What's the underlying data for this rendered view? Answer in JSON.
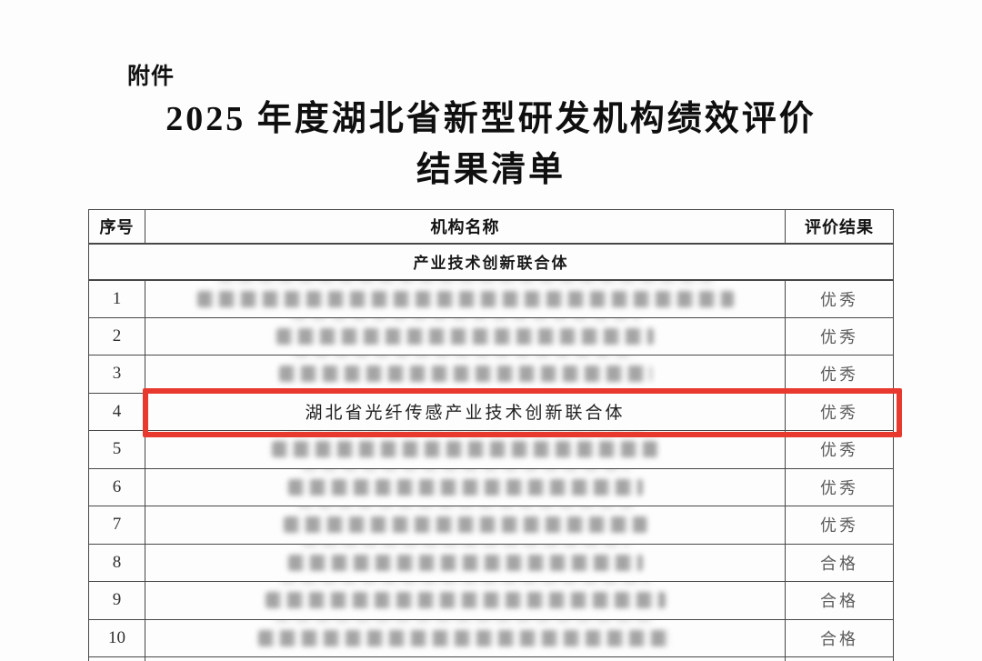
{
  "page": {
    "attachment_label": "附件",
    "title_line1": "2025 年度湖北省新型研发机构绩效评价",
    "title_line2": "结果清单"
  },
  "table": {
    "headers": {
      "index": "序号",
      "name": "机构名称",
      "result": "评价结果"
    },
    "section_header": "产业技术创新联合体",
    "highlight_color": "#e8392e",
    "rows": [
      {
        "num": "1",
        "redacted": true,
        "blur_style": "width:590px",
        "result": "优秀"
      },
      {
        "num": "2",
        "redacted": true,
        "blur_style": "width:415px",
        "result": "优秀"
      },
      {
        "num": "3",
        "redacted": true,
        "blur_style": "width:410px",
        "result": "优秀"
      },
      {
        "num": "4",
        "name": "湖北省光纤传感产业技术创新联合体",
        "result": "优秀",
        "highlighted": true
      },
      {
        "num": "5",
        "redacted": true,
        "blur_style": "width:425px",
        "result": "优秀"
      },
      {
        "num": "6",
        "redacted": true,
        "blur_style": "width:390px",
        "result": "优秀"
      },
      {
        "num": "7",
        "redacted": true,
        "blur_style": "width:400px",
        "result": "优秀"
      },
      {
        "num": "8",
        "redacted": true,
        "blur_style": "width:390px",
        "result": "合格"
      },
      {
        "num": "9",
        "redacted": true,
        "blur_style": "width:440px",
        "result": "合格"
      },
      {
        "num": "10",
        "redacted": true,
        "blur_style": "width:455px",
        "result": "合格"
      }
    ]
  }
}
